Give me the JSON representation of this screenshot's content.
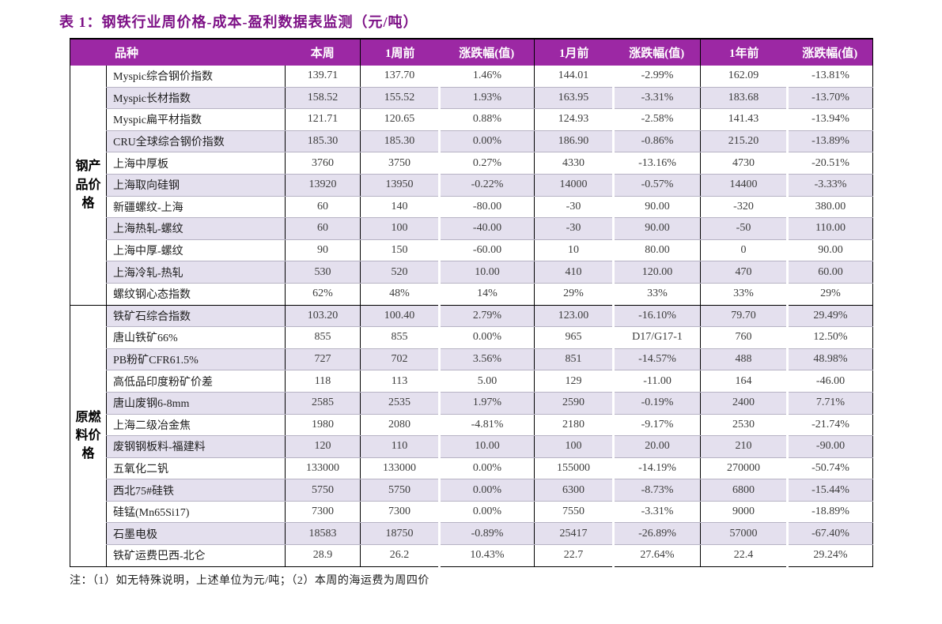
{
  "title": "表 1：钢铁行业周价格-成本-盈利数据表监测（元/吨）",
  "note": "注：（1）如无特殊说明，上述单位为元/吨；（2）本周的海运费为周四价",
  "colors": {
    "header_bg": "#9c28a4",
    "header_text": "#ffffff",
    "stripe_row": "#e4e0ee",
    "title_text": "#7d1186"
  },
  "table": {
    "headers": [
      "品种",
      "本周",
      "1周前",
      "涨跌幅(值)",
      "1月前",
      "涨跌幅(值)",
      "1年前",
      "涨跌幅(值)"
    ],
    "groups": [
      {
        "label": "钢产品价格",
        "rows": [
          {
            "name": "Myspic综合钢价指数",
            "values": [
              "139.71",
              "137.70",
              "1.46%",
              "144.01",
              "-2.99%",
              "162.09",
              "-13.81%"
            ]
          },
          {
            "name": "Myspic长材指数",
            "values": [
              "158.52",
              "155.52",
              "1.93%",
              "163.95",
              "-3.31%",
              "183.68",
              "-13.70%"
            ]
          },
          {
            "name": "Myspic扁平材指数",
            "values": [
              "121.71",
              "120.65",
              "0.88%",
              "124.93",
              "-2.58%",
              "141.43",
              "-13.94%"
            ]
          },
          {
            "name": "CRU全球综合钢价指数",
            "values": [
              "185.30",
              "185.30",
              "0.00%",
              "186.90",
              "-0.86%",
              "215.20",
              "-13.89%"
            ]
          },
          {
            "name": "上海中厚板",
            "values": [
              "3760",
              "3750",
              "0.27%",
              "4330",
              "-13.16%",
              "4730",
              "-20.51%"
            ]
          },
          {
            "name": "上海取向硅钢",
            "values": [
              "13920",
              "13950",
              "-0.22%",
              "14000",
              "-0.57%",
              "14400",
              "-3.33%"
            ]
          },
          {
            "name": "新疆螺纹-上海",
            "values": [
              "60",
              "140",
              "-80.00",
              "-30",
              "90.00",
              "-320",
              "380.00"
            ]
          },
          {
            "name": "上海热轧-螺纹",
            "values": [
              "60",
              "100",
              "-40.00",
              "-30",
              "90.00",
              "-50",
              "110.00"
            ]
          },
          {
            "name": "上海中厚-螺纹",
            "values": [
              "90",
              "150",
              "-60.00",
              "10",
              "80.00",
              "0",
              "90.00"
            ]
          },
          {
            "name": "上海冷轧-热轧",
            "values": [
              "530",
              "520",
              "10.00",
              "410",
              "120.00",
              "470",
              "60.00"
            ]
          },
          {
            "name": "螺纹钢心态指数",
            "values": [
              "62%",
              "48%",
              "14%",
              "29%",
              "33%",
              "33%",
              "29%"
            ]
          }
        ]
      },
      {
        "label": "原燃料价格",
        "rows": [
          {
            "name": "铁矿石综合指数",
            "values": [
              "103.20",
              "100.40",
              "2.79%",
              "123.00",
              "-16.10%",
              "79.70",
              "29.49%"
            ]
          },
          {
            "name": "唐山铁矿66%",
            "values": [
              "855",
              "855",
              "0.00%",
              "965",
              "D17/G17-1",
              "760",
              "12.50%"
            ]
          },
          {
            "name": "PB粉矿CFR61.5%",
            "values": [
              "727",
              "702",
              "3.56%",
              "851",
              "-14.57%",
              "488",
              "48.98%"
            ]
          },
          {
            "name": "高低品印度粉矿价差",
            "values": [
              "118",
              "113",
              "5.00",
              "129",
              "-11.00",
              "164",
              "-46.00"
            ]
          },
          {
            "name": "唐山废钢6-8mm",
            "values": [
              "2585",
              "2535",
              "1.97%",
              "2590",
              "-0.19%",
              "2400",
              "7.71%"
            ]
          },
          {
            "name": "上海二级冶金焦",
            "values": [
              "1980",
              "2080",
              "-4.81%",
              "2180",
              "-9.17%",
              "2530",
              "-21.74%"
            ]
          },
          {
            "name": "废钢钢板料-福建料",
            "values": [
              "120",
              "110",
              "10.00",
              "100",
              "20.00",
              "210",
              "-90.00"
            ]
          },
          {
            "name": "五氧化二钒",
            "values": [
              "133000",
              "133000",
              "0.00%",
              "155000",
              "-14.19%",
              "270000",
              "-50.74%"
            ]
          },
          {
            "name": "西北75#硅铁",
            "values": [
              "5750",
              "5750",
              "0.00%",
              "6300",
              "-8.73%",
              "6800",
              "-15.44%"
            ]
          },
          {
            "name": "硅锰(Mn65Si17)",
            "values": [
              "7300",
              "7300",
              "0.00%",
              "7550",
              "-3.31%",
              "9000",
              "-18.89%"
            ]
          },
          {
            "name": "石墨电极",
            "values": [
              "18583",
              "18750",
              "-0.89%",
              "25417",
              "-26.89%",
              "57000",
              "-67.40%"
            ]
          },
          {
            "name": "铁矿运费巴西-北仑",
            "values": [
              "28.9",
              "26.2",
              "10.43%",
              "22.7",
              "27.64%",
              "22.4",
              "29.24%"
            ]
          }
        ]
      }
    ]
  }
}
